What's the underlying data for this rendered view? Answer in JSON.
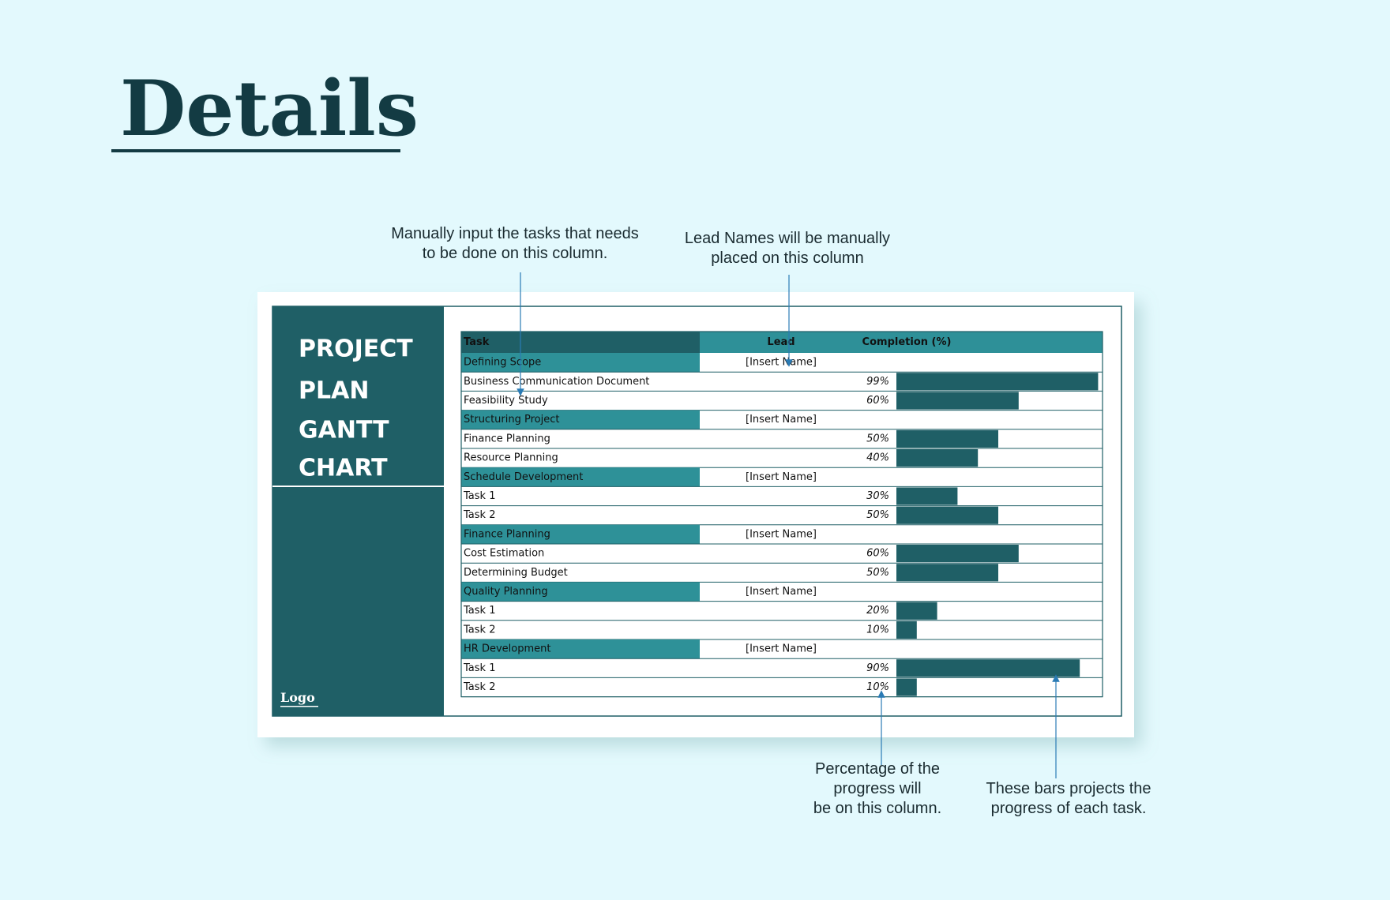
{
  "header": {
    "title": "Details"
  },
  "annotations": [
    {
      "lines": [
        "Manually input the tasks that needs",
        "to be done on this column."
      ]
    },
    {
      "lines": [
        "Lead Names will be manually",
        "placed on this column"
      ]
    },
    {
      "lines": [
        "Percentage of the",
        "progress will",
        "be on this column."
      ]
    },
    {
      "lines": [
        "These bars projects the",
        "progress of each task."
      ]
    }
  ],
  "sheet": {
    "title_lines": [
      "PROJECT",
      "PLAN",
      "GANTT",
      "CHART"
    ],
    "logo": "Logo",
    "columns": [
      "Task",
      "Lead",
      "Completion (%)"
    ],
    "groups": [
      {
        "name": "Defining Scope",
        "lead": "[Insert Name]",
        "tasks": [
          {
            "name": "Business Communication Document",
            "completion": 99,
            "completion_label": "99%"
          },
          {
            "name": "Feasibility Study",
            "completion": 60,
            "completion_label": "60%"
          }
        ]
      },
      {
        "name": "Structuring Project",
        "lead": "[Insert Name]",
        "tasks": [
          {
            "name": "Finance Planning",
            "completion": 50,
            "completion_label": "50%"
          },
          {
            "name": "Resource Planning",
            "completion": 40,
            "completion_label": "40%"
          }
        ]
      },
      {
        "name": "Schedule Development",
        "lead": "[Insert Name]",
        "tasks": [
          {
            "name": "Task 1",
            "completion": 30,
            "completion_label": "30%"
          },
          {
            "name": "Task 2",
            "completion": 50,
            "completion_label": "50%"
          }
        ]
      },
      {
        "name": "Finance Planning",
        "lead": "[Insert Name]",
        "tasks": [
          {
            "name": "Cost Estimation",
            "completion": 60,
            "completion_label": "60%"
          },
          {
            "name": "Determining Budget",
            "completion": 50,
            "completion_label": "50%"
          }
        ]
      },
      {
        "name": "Quality Planning",
        "lead": "[Insert Name]",
        "tasks": [
          {
            "name": "Task 1",
            "completion": 20,
            "completion_label": "20%"
          },
          {
            "name": "Task 2",
            "completion": 10,
            "completion_label": "10%"
          }
        ]
      },
      {
        "name": "HR Development",
        "lead": "[Insert Name]",
        "tasks": [
          {
            "name": "Task 1",
            "completion": 90,
            "completion_label": "90%"
          },
          {
            "name": "Task 2",
            "completion": 10,
            "completion_label": "10%"
          }
        ]
      }
    ]
  }
}
